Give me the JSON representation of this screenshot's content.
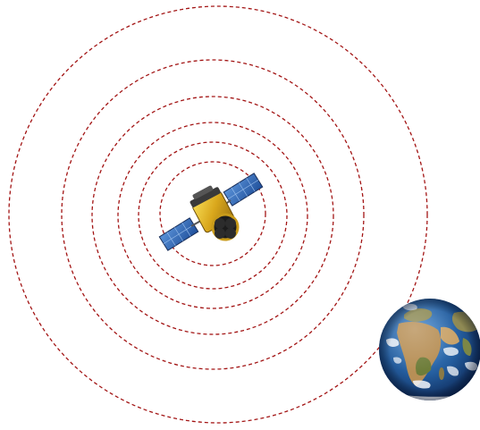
{
  "scene": {
    "background_color": "#ffffff",
    "ring_color": "#a31515",
    "ring_count": 6,
    "objects": [
      {
        "name": "satellite",
        "icon": "satellite-icon"
      },
      {
        "name": "earth",
        "icon": "earth-globe-icon"
      }
    ]
  }
}
